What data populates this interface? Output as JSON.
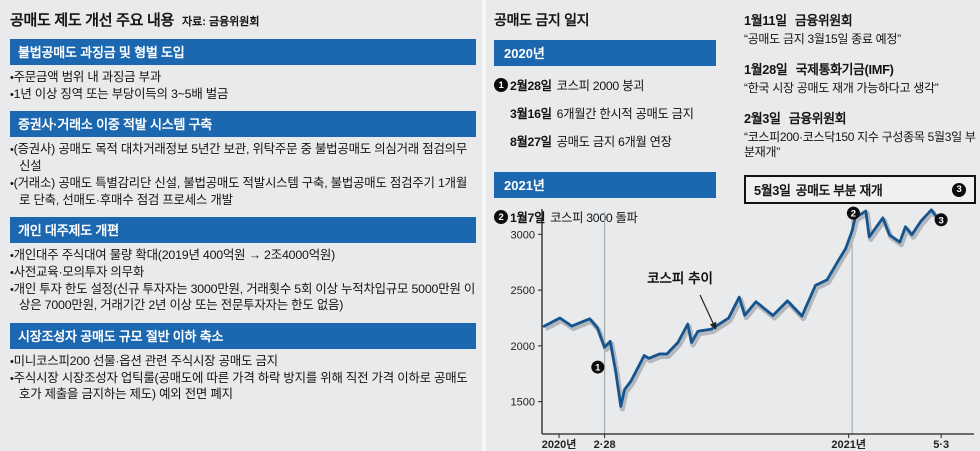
{
  "colors": {
    "background": "#e8eaec",
    "header_blue": "#1b67b0",
    "line_blue": "#15558f",
    "line_shadow": "#b4b8bd",
    "badge_black": "#0c0c0c",
    "text": "#141414"
  },
  "left_panel": {
    "title": "공매도 제도 개선 주요 내용",
    "source": "자료: 금융위원회",
    "sections": [
      {
        "header": "불법공매도 과징금 및 형벌 도입",
        "items": [
          "주문금액 범위 내 과징금 부과",
          "1년 이상 징역 또는 부당이득의 3~5배 벌금"
        ]
      },
      {
        "header": "증권사·거래소 이중 적발 시스템 구축",
        "items": [
          "(증권사) 공매도 목적 대차거래정보 5년간 보관, 위탁주문 중 불법공매도 의심거래 점검의무 신설",
          "(거래소) 공매도 특별감리단 신설, 불법공매도 적발시스템 구축, 불법공매도 점검주기 1개월로 단축, 선매도·후매수 점검 프로세스 개발"
        ]
      },
      {
        "header": "개인 대주제도 개편",
        "items": [
          "개인대주 주식대여 물량 확대(2019년 400억원 → 2조4000억원)",
          "사전교육·모의투자 의무화",
          "개인 투자 한도 설정(신규 투자자는 3000만원, 거래횟수 5회 이상 누적차입규모 5000만원 이상은 7000만원, 거래기간 2년 이상 또는 전문투자자는 한도 없음)"
        ]
      },
      {
        "header": "시장조성자 공매도 규모 절반 이하 축소",
        "items": [
          "미니코스피200 선물·옵션 관련 주식시장 공매도 금지",
          "주식시장 시장조성자 업틱룰(공매도에 따른 가격 하락 방지를 위해 직전 가격 이하로 공매도 호가 제출을 금지하는 제도) 예외 전면 폐지"
        ]
      }
    ]
  },
  "timeline": {
    "title": "공매도 금지 일지",
    "groups": [
      {
        "year": "2020년",
        "events": [
          {
            "badge": "1",
            "date": "2월28일",
            "text": "코스피 2000 붕괴"
          },
          {
            "badge": "",
            "date": "3월16일",
            "text": "6개월간 한시적 공매도 금지"
          },
          {
            "badge": "",
            "date": "8월27일",
            "text": "공매도 금지 6개월 연장"
          }
        ]
      },
      {
        "year": "2021년",
        "events": [
          {
            "badge": "2",
            "date": "1월7일",
            "text": "코스피 3000 돌파"
          }
        ]
      }
    ]
  },
  "notes": [
    {
      "date": "1월11일",
      "org": "금융위원회",
      "quote": "“공매도 금지 3월15일 종료 예정”"
    },
    {
      "date": "1월28일",
      "org": "국제통화기금(IMF)",
      "quote": "“한국 시장 공매도 재개 가능하다고 생각”"
    },
    {
      "date": "2월3일",
      "org": "금융위원회",
      "quote": "“코스피200·코스닥150 지수 구성종목 5월3일 부분재개”"
    }
  ],
  "reopen_box": {
    "date": "5월3일",
    "text": "공매도 부분 재개",
    "badge": "3"
  },
  "chart_data": {
    "type": "line",
    "title": "코스피 추이",
    "ylim": [
      1210,
      3200
    ],
    "yticks": [
      1500,
      2000,
      2500,
      3000
    ],
    "x_axis_labels": [
      {
        "label": "2020년",
        "x": 0.04
      },
      {
        "label": "2·28",
        "x": 0.147
      },
      {
        "label": "2021년",
        "x": 0.72
      },
      {
        "label": "5·3",
        "x": 0.937
      }
    ],
    "vlines": [
      0.147,
      0.728
    ],
    "line_color": "#15558f",
    "shadow_color": "#b4b8bd",
    "series": [
      {
        "name": "코스피(KOSPI)",
        "points": [
          [
            0.005,
            2175
          ],
          [
            0.042,
            2250
          ],
          [
            0.07,
            2177
          ],
          [
            0.112,
            2243
          ],
          [
            0.13,
            2162
          ],
          [
            0.147,
            1987
          ],
          [
            0.16,
            2040
          ],
          [
            0.173,
            1771
          ],
          [
            0.185,
            1457
          ],
          [
            0.194,
            1609
          ],
          [
            0.209,
            1685
          ],
          [
            0.24,
            1914
          ],
          [
            0.251,
            1889
          ],
          [
            0.276,
            1928
          ],
          [
            0.293,
            1927
          ],
          [
            0.319,
            2030
          ],
          [
            0.342,
            2195
          ],
          [
            0.351,
            2030
          ],
          [
            0.366,
            2131
          ],
          [
            0.398,
            2150
          ],
          [
            0.438,
            2249
          ],
          [
            0.463,
            2437
          ],
          [
            0.476,
            2274
          ],
          [
            0.502,
            2396
          ],
          [
            0.542,
            2272
          ],
          [
            0.576,
            2403
          ],
          [
            0.61,
            2267
          ],
          [
            0.642,
            2543
          ],
          [
            0.669,
            2591
          ],
          [
            0.695,
            2762
          ],
          [
            0.713,
            2873
          ],
          [
            0.728,
            3031
          ],
          [
            0.735,
            3148
          ],
          [
            0.76,
            3209
          ],
          [
            0.768,
            2976
          ],
          [
            0.8,
            3147
          ],
          [
            0.816,
            2994
          ],
          [
            0.84,
            2929
          ],
          [
            0.853,
            3067
          ],
          [
            0.868,
            2996
          ],
          [
            0.89,
            3120
          ],
          [
            0.914,
            3220
          ],
          [
            0.928,
            3145
          ],
          [
            0.937,
            3156
          ]
        ]
      }
    ],
    "badge_markers": [
      {
        "badge": "1",
        "x": 0.131,
        "y": 1810
      },
      {
        "badge": "2",
        "x": 0.731,
        "y": 3190
      },
      {
        "badge": "3",
        "x": 0.937,
        "y": 3130
      }
    ],
    "annotation": {
      "text": "코스피 추이",
      "label_x": 0.324,
      "label_y": 2563,
      "arrow": {
        "x1": 0.371,
        "y1": 2456,
        "x2": 0.408,
        "y2": 2150
      }
    }
  }
}
